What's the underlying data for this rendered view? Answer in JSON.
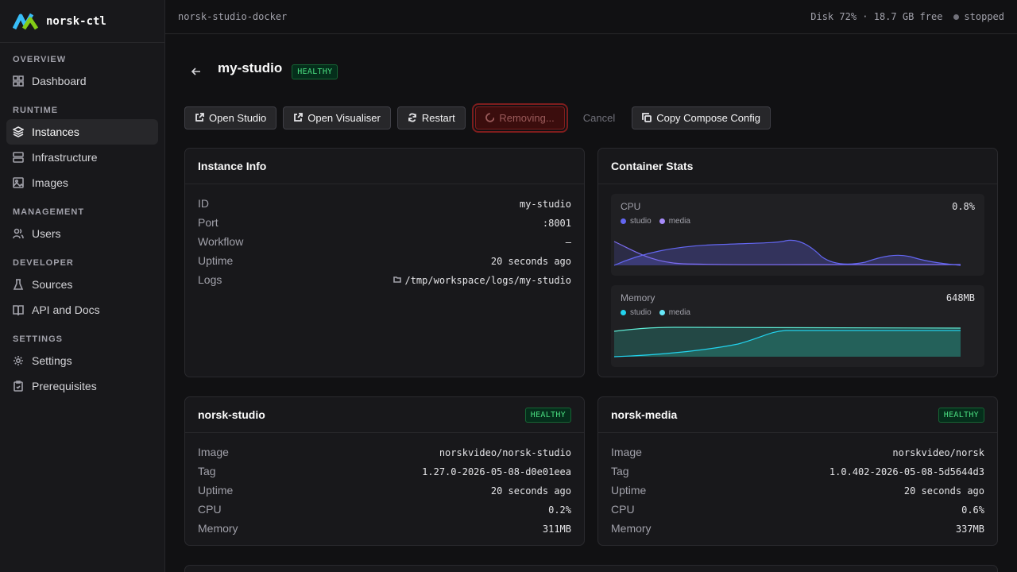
{
  "app": {
    "name": "norsk-ctl"
  },
  "sidebar": {
    "sections": [
      {
        "title": "OVERVIEW",
        "items": [
          {
            "label": "Dashboard",
            "icon": "dashboard-icon"
          }
        ]
      },
      {
        "title": "RUNTIME",
        "items": [
          {
            "label": "Instances",
            "icon": "layers-icon",
            "active": true
          },
          {
            "label": "Infrastructure",
            "icon": "server-icon"
          },
          {
            "label": "Images",
            "icon": "image-icon"
          }
        ]
      },
      {
        "title": "MANAGEMENT",
        "items": [
          {
            "label": "Users",
            "icon": "users-icon"
          }
        ]
      },
      {
        "title": "DEVELOPER",
        "items": [
          {
            "label": "Sources",
            "icon": "flask-icon"
          },
          {
            "label": "API and Docs",
            "icon": "book-icon"
          }
        ]
      },
      {
        "title": "SETTINGS",
        "items": [
          {
            "label": "Settings",
            "icon": "gear-icon"
          },
          {
            "label": "Prerequisites",
            "icon": "clipboard-icon"
          }
        ]
      }
    ]
  },
  "topbar": {
    "context": "norsk-studio-docker",
    "disk": "Disk 72% · 18.7 GB free",
    "status": "stopped"
  },
  "page": {
    "title": "my-studio",
    "status": "HEALTHY"
  },
  "toolbar": {
    "open_studio": "Open Studio",
    "open_visualiser": "Open Visualiser",
    "restart": "Restart",
    "removing": "Removing...",
    "cancel": "Cancel",
    "copy_compose": "Copy Compose Config"
  },
  "instance_info": {
    "title": "Instance Info",
    "rows": [
      {
        "key": "ID",
        "value": "my-studio"
      },
      {
        "key": "Port",
        "value": ":8001"
      },
      {
        "key": "Workflow",
        "value": "–"
      },
      {
        "key": "Uptime",
        "value": "20 seconds ago"
      },
      {
        "key": "Logs",
        "value": "/tmp/workspace/logs/my-studio"
      }
    ]
  },
  "container_stats": {
    "title": "Container Stats",
    "cpu": {
      "label": "CPU",
      "value": "0.8%",
      "legend": [
        "studio",
        "media"
      ],
      "colors": [
        "#6366f1",
        "#a78bfa"
      ]
    },
    "memory": {
      "label": "Memory",
      "value": "648MB",
      "legend": [
        "studio",
        "media"
      ],
      "colors": [
        "#22d3ee",
        "#67e8f9"
      ]
    }
  },
  "norsk_studio": {
    "title": "norsk-studio",
    "status": "HEALTHY",
    "rows": [
      {
        "key": "Image",
        "value": "norskvideo/norsk-studio"
      },
      {
        "key": "Tag",
        "value": "1.27.0-2026-05-08-d0e01eea"
      },
      {
        "key": "Uptime",
        "value": "20 seconds ago"
      },
      {
        "key": "CPU",
        "value": "0.2%"
      },
      {
        "key": "Memory",
        "value": "311MB"
      }
    ]
  },
  "norsk_media": {
    "title": "norsk-media",
    "status": "HEALTHY",
    "rows": [
      {
        "key": "Image",
        "value": "norskvideo/norsk"
      },
      {
        "key": "Tag",
        "value": "1.0.402-2026-05-08-5d5644d3"
      },
      {
        "key": "Uptime",
        "value": "20 seconds ago"
      },
      {
        "key": "CPU",
        "value": "0.6%"
      },
      {
        "key": "Memory",
        "value": "337MB"
      }
    ]
  }
}
